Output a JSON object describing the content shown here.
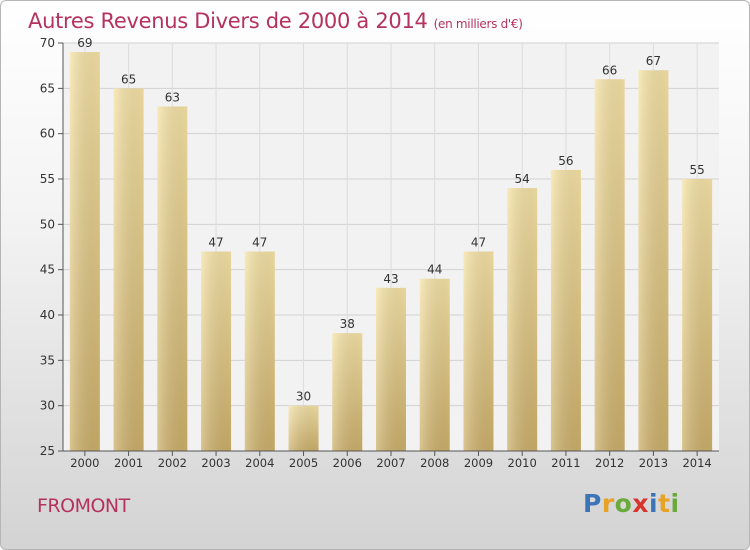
{
  "header": {
    "title": "Autres Revenus Divers de 2000 à 2014",
    "unit": "(en milliers d'€)"
  },
  "location": "FROMONT",
  "logo": {
    "text": "Proxiti",
    "letters": [
      {
        "char": "P",
        "color": "#3c74b8"
      },
      {
        "char": "r",
        "color": "#e8a224"
      },
      {
        "char": "o",
        "color": "#6aaa3a"
      },
      {
        "char": "x",
        "color": "#d8342c"
      },
      {
        "char": "i",
        "color": "#3c74b8"
      },
      {
        "char": "t",
        "color": "#e8a224"
      },
      {
        "char": "i",
        "color": "#6aaa3a"
      }
    ]
  },
  "chart_data": {
    "type": "bar",
    "categories": [
      "2000",
      "2001",
      "2002",
      "2003",
      "2004",
      "2005",
      "2006",
      "2007",
      "2008",
      "2009",
      "2010",
      "2011",
      "2012",
      "2013",
      "2014"
    ],
    "values": [
      69,
      65,
      63,
      47,
      47,
      30,
      38,
      43,
      44,
      47,
      54,
      56,
      66,
      67,
      55
    ],
    "ylim": [
      25,
      70
    ],
    "yticks": [
      25,
      30,
      35,
      40,
      45,
      50,
      55,
      60,
      65,
      70
    ],
    "grid": true,
    "bar_color": "#e6cf8a"
  }
}
